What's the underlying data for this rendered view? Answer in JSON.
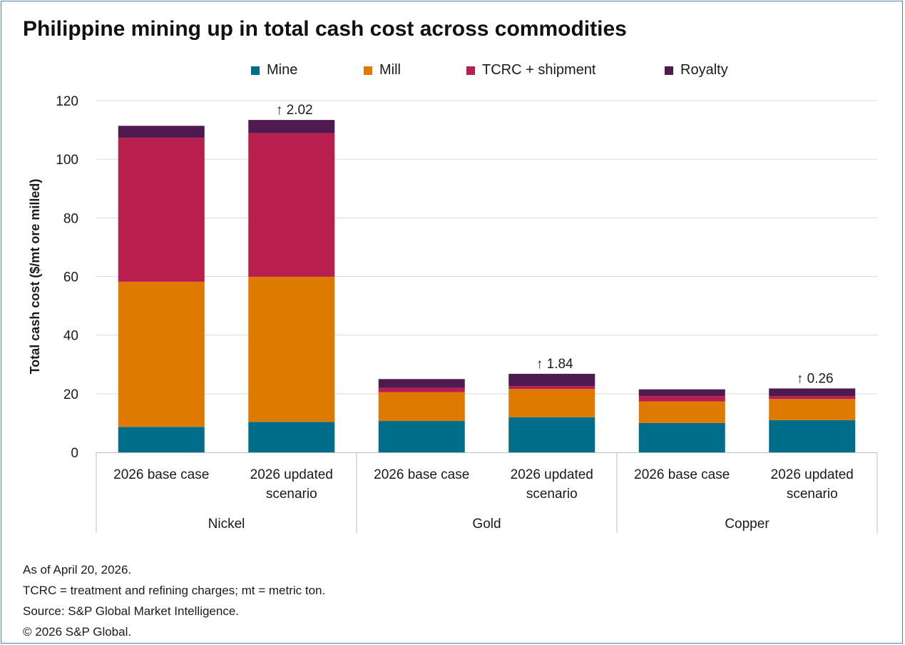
{
  "title": "Philippine mining up in total cash cost across commodities",
  "legend": [
    {
      "label": "Mine",
      "color": "#006e8a"
    },
    {
      "label": "Mill",
      "color": "#df7a00"
    },
    {
      "label": "TCRC + shipment",
      "color": "#b81f4f"
    },
    {
      "label": "Royalty",
      "color": "#4f1a4f"
    }
  ],
  "chart_data": {
    "type": "bar",
    "stacked": true,
    "ylabel": "Total cash cost ($/mt ore milled)",
    "ylim": [
      0,
      120
    ],
    "yticks": [
      0,
      20,
      40,
      60,
      80,
      100,
      120
    ],
    "grid": true,
    "legend_position": "top",
    "groups": [
      {
        "name": "Nickel",
        "categories": [
          {
            "label": [
              "2026 base case"
            ],
            "annotation": ""
          },
          {
            "label": [
              "2026 updated",
              "scenario"
            ],
            "annotation": "↑ 2.02"
          }
        ]
      },
      {
        "name": "Gold",
        "categories": [
          {
            "label": [
              "2026 base case"
            ],
            "annotation": ""
          },
          {
            "label": [
              "2026 updated",
              "scenario"
            ],
            "annotation": "↑ 1.84"
          }
        ]
      },
      {
        "name": "Copper",
        "categories": [
          {
            "label": [
              "2026 base case"
            ],
            "annotation": ""
          },
          {
            "label": [
              "2026 updated",
              "scenario"
            ],
            "annotation": "↑ 0.26"
          }
        ]
      }
    ],
    "series": [
      {
        "name": "Mine",
        "color": "#006e8a",
        "values": [
          8.7,
          10.4,
          10.7,
          12.0,
          10.0,
          11.0
        ]
      },
      {
        "name": "Mill",
        "color": "#df7a00",
        "values": [
          49.5,
          49.5,
          9.8,
          9.6,
          7.4,
          7.2
        ]
      },
      {
        "name": "TCRC + shipment",
        "color": "#b81f4f",
        "values": [
          49.1,
          49.0,
          1.5,
          1.0,
          1.8,
          1.0
        ]
      },
      {
        "name": "Royalty",
        "color": "#4f1a4f",
        "values": [
          4.1,
          4.5,
          3.0,
          4.2,
          2.3,
          2.6
        ]
      }
    ]
  },
  "notes": [
    "As of April 20, 2026.",
    "TCRC = treatment and refining charges; mt = metric ton.",
    "Source: S&P Global Market Intelligence.",
    "© 2026 S&P Global."
  ]
}
